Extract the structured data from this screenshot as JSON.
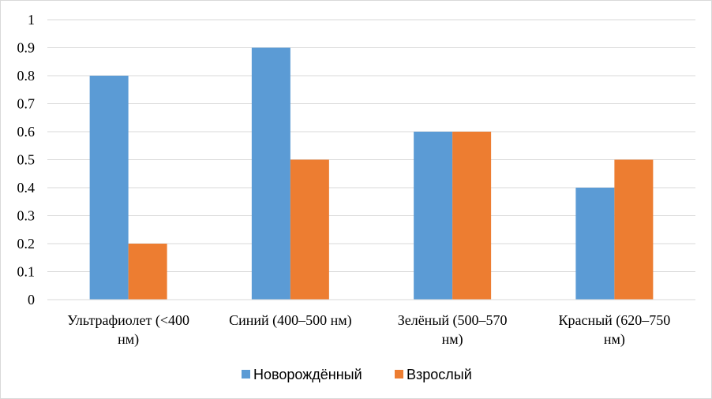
{
  "chart_data": {
    "type": "bar",
    "categories": [
      [
        "Ультрафиолет (<400",
        "нм)"
      ],
      [
        "Синий (400–500 нм)"
      ],
      [
        "Зелёный (500–570",
        "нм)"
      ],
      [
        "Красный (620–750",
        "нм)"
      ]
    ],
    "series": [
      {
        "name": "Новорождённый",
        "color": "#5b9bd5",
        "values": [
          0.8,
          0.9,
          0.6,
          0.4
        ]
      },
      {
        "name": "Взрослый",
        "color": "#ed7d31",
        "values": [
          0.2,
          0.5,
          0.6,
          0.5
        ]
      }
    ],
    "ylim": [
      0,
      1
    ],
    "yticks": [
      "0",
      "0.1",
      "0.2",
      "0.3",
      "0.4",
      "0.5",
      "0.6",
      "0.7",
      "0.8",
      "0.9",
      "1"
    ],
    "grid": true,
    "legend_position": "bottom",
    "gridline_color": "#d9d9d9"
  }
}
